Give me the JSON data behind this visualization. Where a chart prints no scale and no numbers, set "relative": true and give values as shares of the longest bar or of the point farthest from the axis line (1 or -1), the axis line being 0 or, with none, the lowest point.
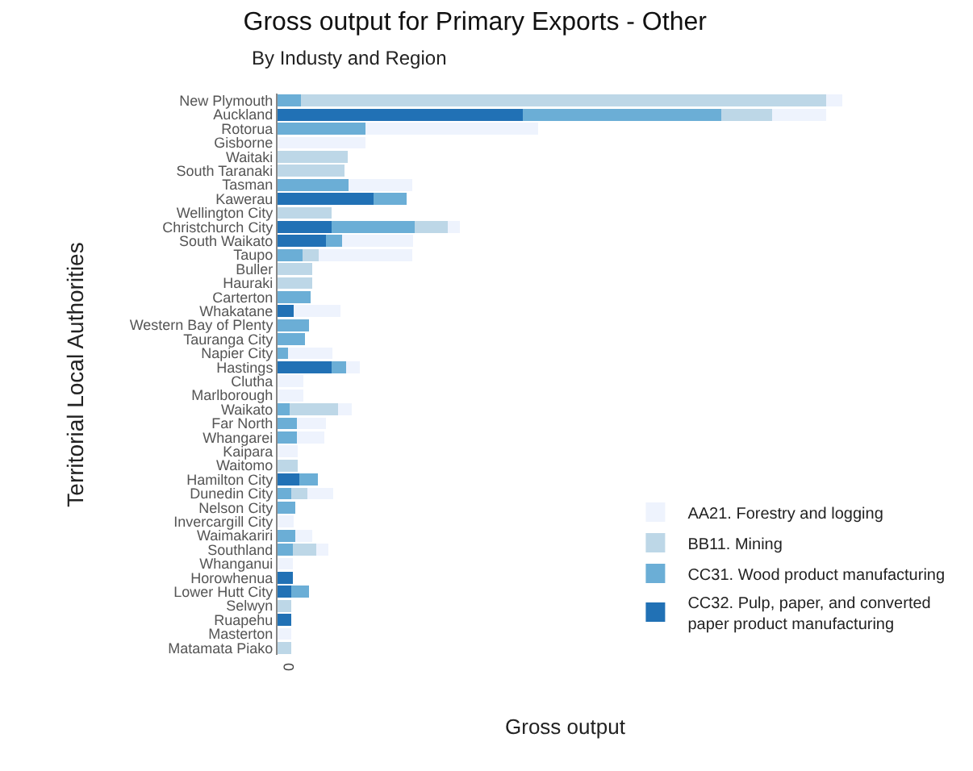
{
  "chart_data": {
    "type": "bar",
    "orientation": "horizontal",
    "stacked": true,
    "relative": true,
    "title": "Gross output for Primary Exports - Other",
    "subtitle": "By Industy and Region",
    "xlabel": "Gross output",
    "ylabel": "Territorial Local Authorities",
    "legend": "bottom right",
    "annotations": [
      "0"
    ],
    "categories": [
      "New Plymouth",
      "Auckland",
      "Rotorua",
      "Gisborne",
      "Waitaki",
      "South Taranaki",
      "Tasman",
      "Kawerau",
      "Wellington City",
      "Christchurch City",
      "South Waikato",
      "Taupo",
      "Buller",
      "Hauraki",
      "Carterton",
      "Whakatane",
      "Western Bay of Plenty",
      "Tauranga City",
      "Napier City",
      "Hastings",
      "Clutha",
      "Marlborough",
      "Waikato",
      "Far North",
      "Whangarei",
      "Kaipara",
      "Waitomo",
      "Hamilton City",
      "Dunedin City",
      "Nelson City",
      "Invercargill City",
      "Waimakariri",
      "Southland",
      "Whanganui",
      "Horowhenua",
      "Lower Hutt City",
      "Selwyn",
      "Ruapehu",
      "Masterton",
      "Matamata Piako"
    ],
    "series": [
      {
        "name": "CC32. Pulp, paper, and converted paper product manufacturing",
        "color": "#2171b5",
        "values": [
          0,
          0.434,
          0,
          0,
          0,
          0,
          0,
          0.17,
          0,
          0.095,
          0.085,
          0,
          0,
          0,
          0,
          0.029,
          0,
          0,
          0,
          0.095,
          0,
          0,
          0,
          0,
          0,
          0,
          0,
          0.039,
          0,
          0,
          0,
          0,
          0,
          0,
          0.027,
          0.024,
          0,
          0.024,
          0,
          0
        ]
      },
      {
        "name": "CC31. Wood product manufacturing",
        "color": "#6baed6",
        "values": [
          0.041,
          0.352,
          0.155,
          0,
          0,
          0,
          0.126,
          0.058,
          0,
          0.148,
          0.029,
          0.044,
          0,
          0,
          0.058,
          0,
          0.056,
          0.049,
          0.019,
          0.027,
          0,
          0,
          0.022,
          0.034,
          0.034,
          0,
          0,
          0.032,
          0.024,
          0.032,
          0,
          0.032,
          0.027,
          0,
          0,
          0.032,
          0,
          0,
          0,
          0
        ]
      },
      {
        "name": "BB11. Mining",
        "color": "#bdd7e7",
        "values": [
          0.93,
          0.09,
          0,
          0,
          0.124,
          0.119,
          0,
          0,
          0.095,
          0.058,
          0,
          0.029,
          0.061,
          0.061,
          0,
          0,
          0,
          0,
          0,
          0,
          0,
          0,
          0.085,
          0,
          0,
          0,
          0.036,
          0,
          0.029,
          0,
          0,
          0,
          0.041,
          0,
          0,
          0,
          0.024,
          0,
          0,
          0.024
        ]
      },
      {
        "name": "AA21. Forestry and logging",
        "color": "#eef3fd",
        "values": [
          0.029,
          0.095,
          0.306,
          0.155,
          0,
          0,
          0.112,
          0,
          0,
          0.022,
          0.126,
          0.165,
          0,
          0,
          0,
          0.083,
          0,
          0,
          0.078,
          0.024,
          0.046,
          0.046,
          0.024,
          0.051,
          0.049,
          0.036,
          0,
          0,
          0.046,
          0,
          0.029,
          0.029,
          0.022,
          0.027,
          0,
          0,
          0,
          0,
          0.024,
          0
        ]
      }
    ]
  }
}
